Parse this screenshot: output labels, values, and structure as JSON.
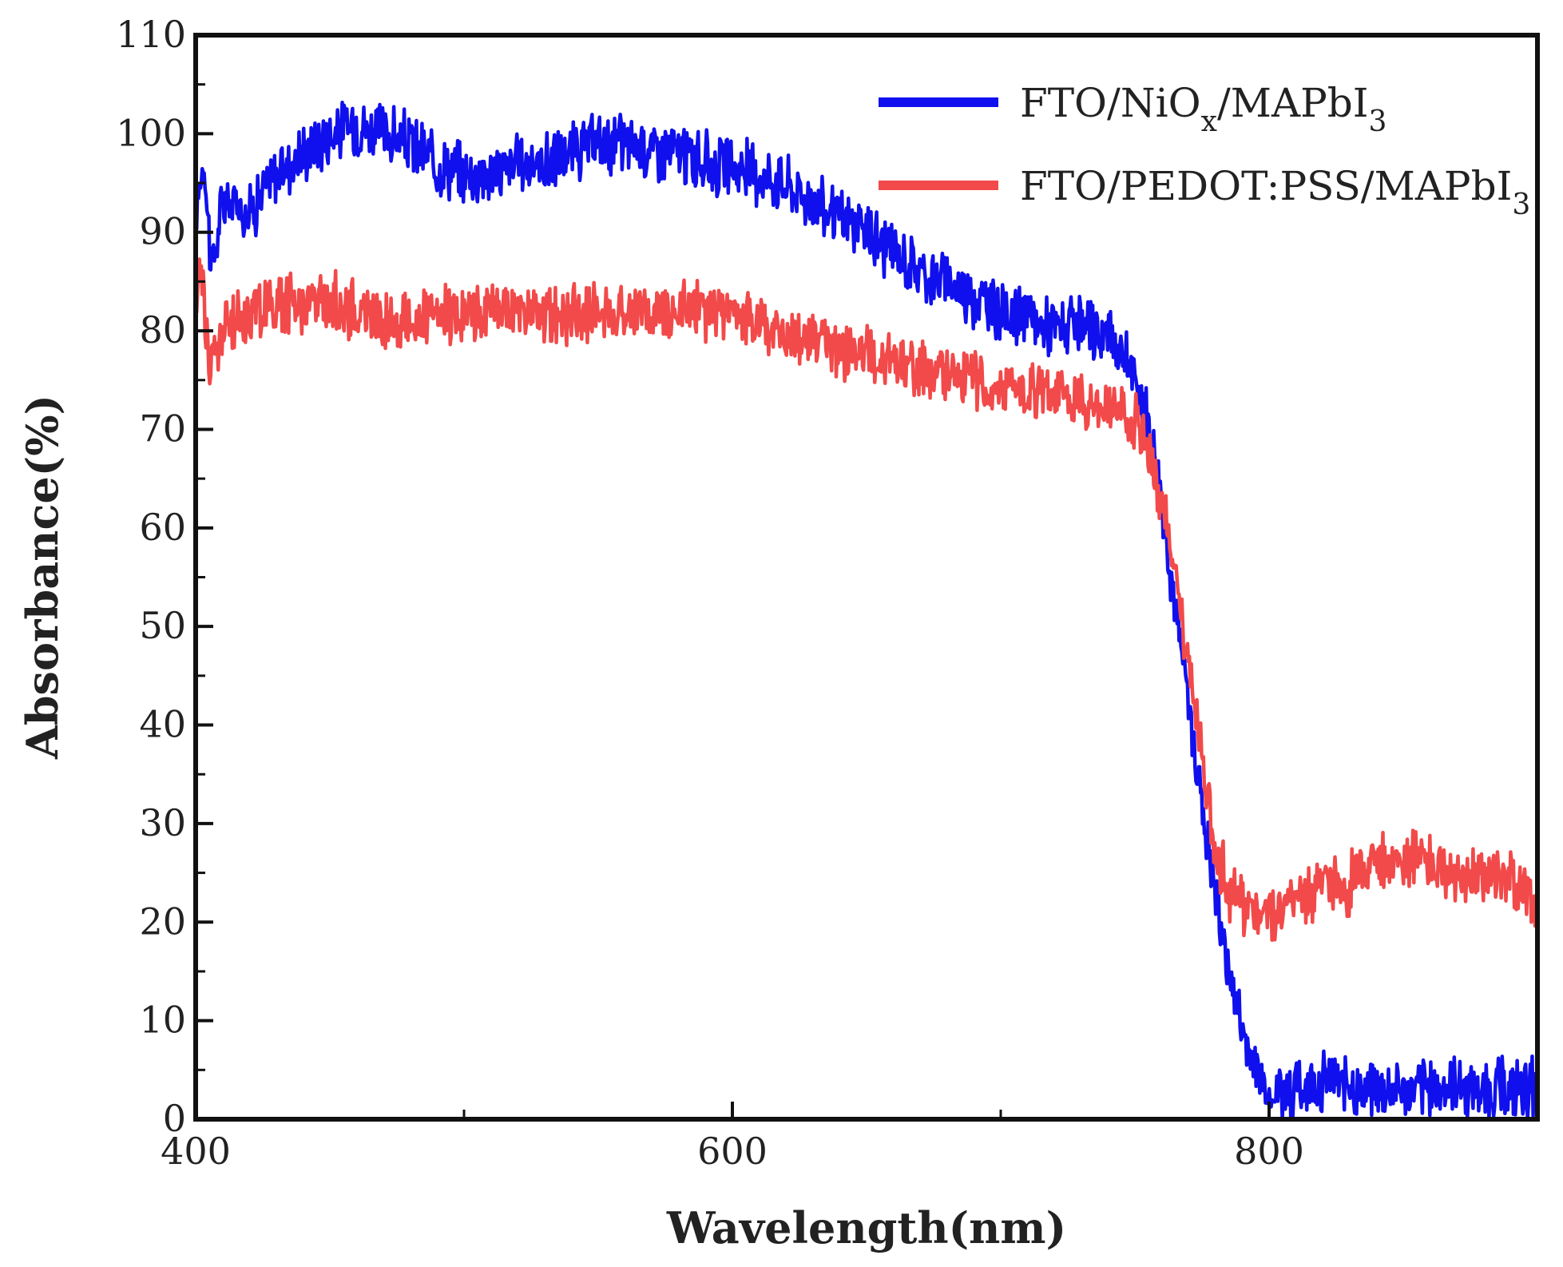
{
  "chart_data": {
    "type": "line",
    "title": "",
    "xlabel": "Wavelength(nm)",
    "ylabel": "Absorbance(%)",
    "xlim": [
      400,
      900
    ],
    "ylim": [
      0,
      110
    ],
    "x_ticks": [
      400,
      600,
      800
    ],
    "y_ticks": [
      0,
      10,
      20,
      30,
      40,
      50,
      60,
      70,
      80,
      90,
      100,
      110
    ],
    "grid": false,
    "legend_position": "top-right",
    "series": [
      {
        "name": "FTO/NiOx/MAPbI3",
        "legend": {
          "main": "FTO/NiO",
          "sub1": "x",
          "mid": "/MAPbI",
          "sub2": "3"
        },
        "color": "#1010ee",
        "noise": 2.5,
        "points": [
          [
            400,
            92
          ],
          [
            403,
            98
          ],
          [
            406,
            86
          ],
          [
            410,
            93
          ],
          [
            415,
            93
          ],
          [
            420,
            92
          ],
          [
            430,
            96
          ],
          [
            440,
            98
          ],
          [
            450,
            100
          ],
          [
            460,
            101
          ],
          [
            470,
            100
          ],
          [
            480,
            99
          ],
          [
            490,
            97
          ],
          [
            500,
            96
          ],
          [
            510,
            96
          ],
          [
            520,
            97
          ],
          [
            530,
            97
          ],
          [
            540,
            98
          ],
          [
            550,
            99
          ],
          [
            560,
            99
          ],
          [
            570,
            98.5
          ],
          [
            580,
            98
          ],
          [
            590,
            97
          ],
          [
            600,
            96.5
          ],
          [
            610,
            96
          ],
          [
            620,
            95
          ],
          [
            630,
            93
          ],
          [
            640,
            91.5
          ],
          [
            650,
            90
          ],
          [
            660,
            88
          ],
          [
            670,
            86
          ],
          [
            680,
            85
          ],
          [
            690,
            83.5
          ],
          [
            700,
            82
          ],
          [
            710,
            81
          ],
          [
            720,
            80.5
          ],
          [
            730,
            80
          ],
          [
            740,
            79.5
          ],
          [
            745,
            78
          ],
          [
            750,
            75
          ],
          [
            755,
            71
          ],
          [
            760,
            63
          ],
          [
            765,
            52
          ],
          [
            770,
            42
          ],
          [
            775,
            32
          ],
          [
            780,
            23
          ],
          [
            785,
            15
          ],
          [
            790,
            9
          ],
          [
            795,
            5
          ],
          [
            800,
            3
          ],
          [
            810,
            3
          ],
          [
            820,
            4
          ],
          [
            830,
            3.5
          ],
          [
            840,
            3
          ],
          [
            850,
            3
          ],
          [
            860,
            3
          ],
          [
            870,
            3.5
          ],
          [
            880,
            3
          ],
          [
            890,
            3
          ],
          [
            900,
            3
          ]
        ]
      },
      {
        "name": "FTO/PEDOT:PSS/MAPbI3",
        "legend": {
          "main": "FTO/PEDOT:PSS/MAPbI",
          "sub1": "",
          "mid": "",
          "sub2": "3"
        },
        "color": "#f24a4a",
        "noise": 2.5,
        "points": [
          [
            400,
            82
          ],
          [
            402,
            88
          ],
          [
            405,
            76
          ],
          [
            410,
            80
          ],
          [
            420,
            82
          ],
          [
            430,
            83
          ],
          [
            440,
            83
          ],
          [
            450,
            83
          ],
          [
            460,
            82
          ],
          [
            470,
            81
          ],
          [
            480,
            81
          ],
          [
            490,
            81
          ],
          [
            500,
            82
          ],
          [
            510,
            82
          ],
          [
            520,
            82
          ],
          [
            530,
            81.5
          ],
          [
            540,
            81.5
          ],
          [
            550,
            82
          ],
          [
            560,
            82
          ],
          [
            570,
            82
          ],
          [
            580,
            82.5
          ],
          [
            590,
            82
          ],
          [
            600,
            81.5
          ],
          [
            610,
            81
          ],
          [
            620,
            79.5
          ],
          [
            630,
            79
          ],
          [
            640,
            78
          ],
          [
            650,
            77.5
          ],
          [
            660,
            76.5
          ],
          [
            670,
            76
          ],
          [
            680,
            76
          ],
          [
            690,
            75
          ],
          [
            700,
            74.5
          ],
          [
            710,
            74
          ],
          [
            720,
            73.5
          ],
          [
            730,
            73
          ],
          [
            740,
            72.5
          ],
          [
            745,
            72
          ],
          [
            750,
            70.5
          ],
          [
            755,
            68
          ],
          [
            760,
            63
          ],
          [
            765,
            55
          ],
          [
            770,
            46
          ],
          [
            775,
            37
          ],
          [
            780,
            28
          ],
          [
            785,
            23
          ],
          [
            790,
            22
          ],
          [
            800,
            21
          ],
          [
            810,
            22
          ],
          [
            820,
            23
          ],
          [
            830,
            24
          ],
          [
            840,
            26
          ],
          [
            850,
            26.5
          ],
          [
            860,
            26
          ],
          [
            870,
            25
          ],
          [
            880,
            25
          ],
          [
            890,
            24
          ],
          [
            900,
            22
          ]
        ]
      }
    ]
  }
}
